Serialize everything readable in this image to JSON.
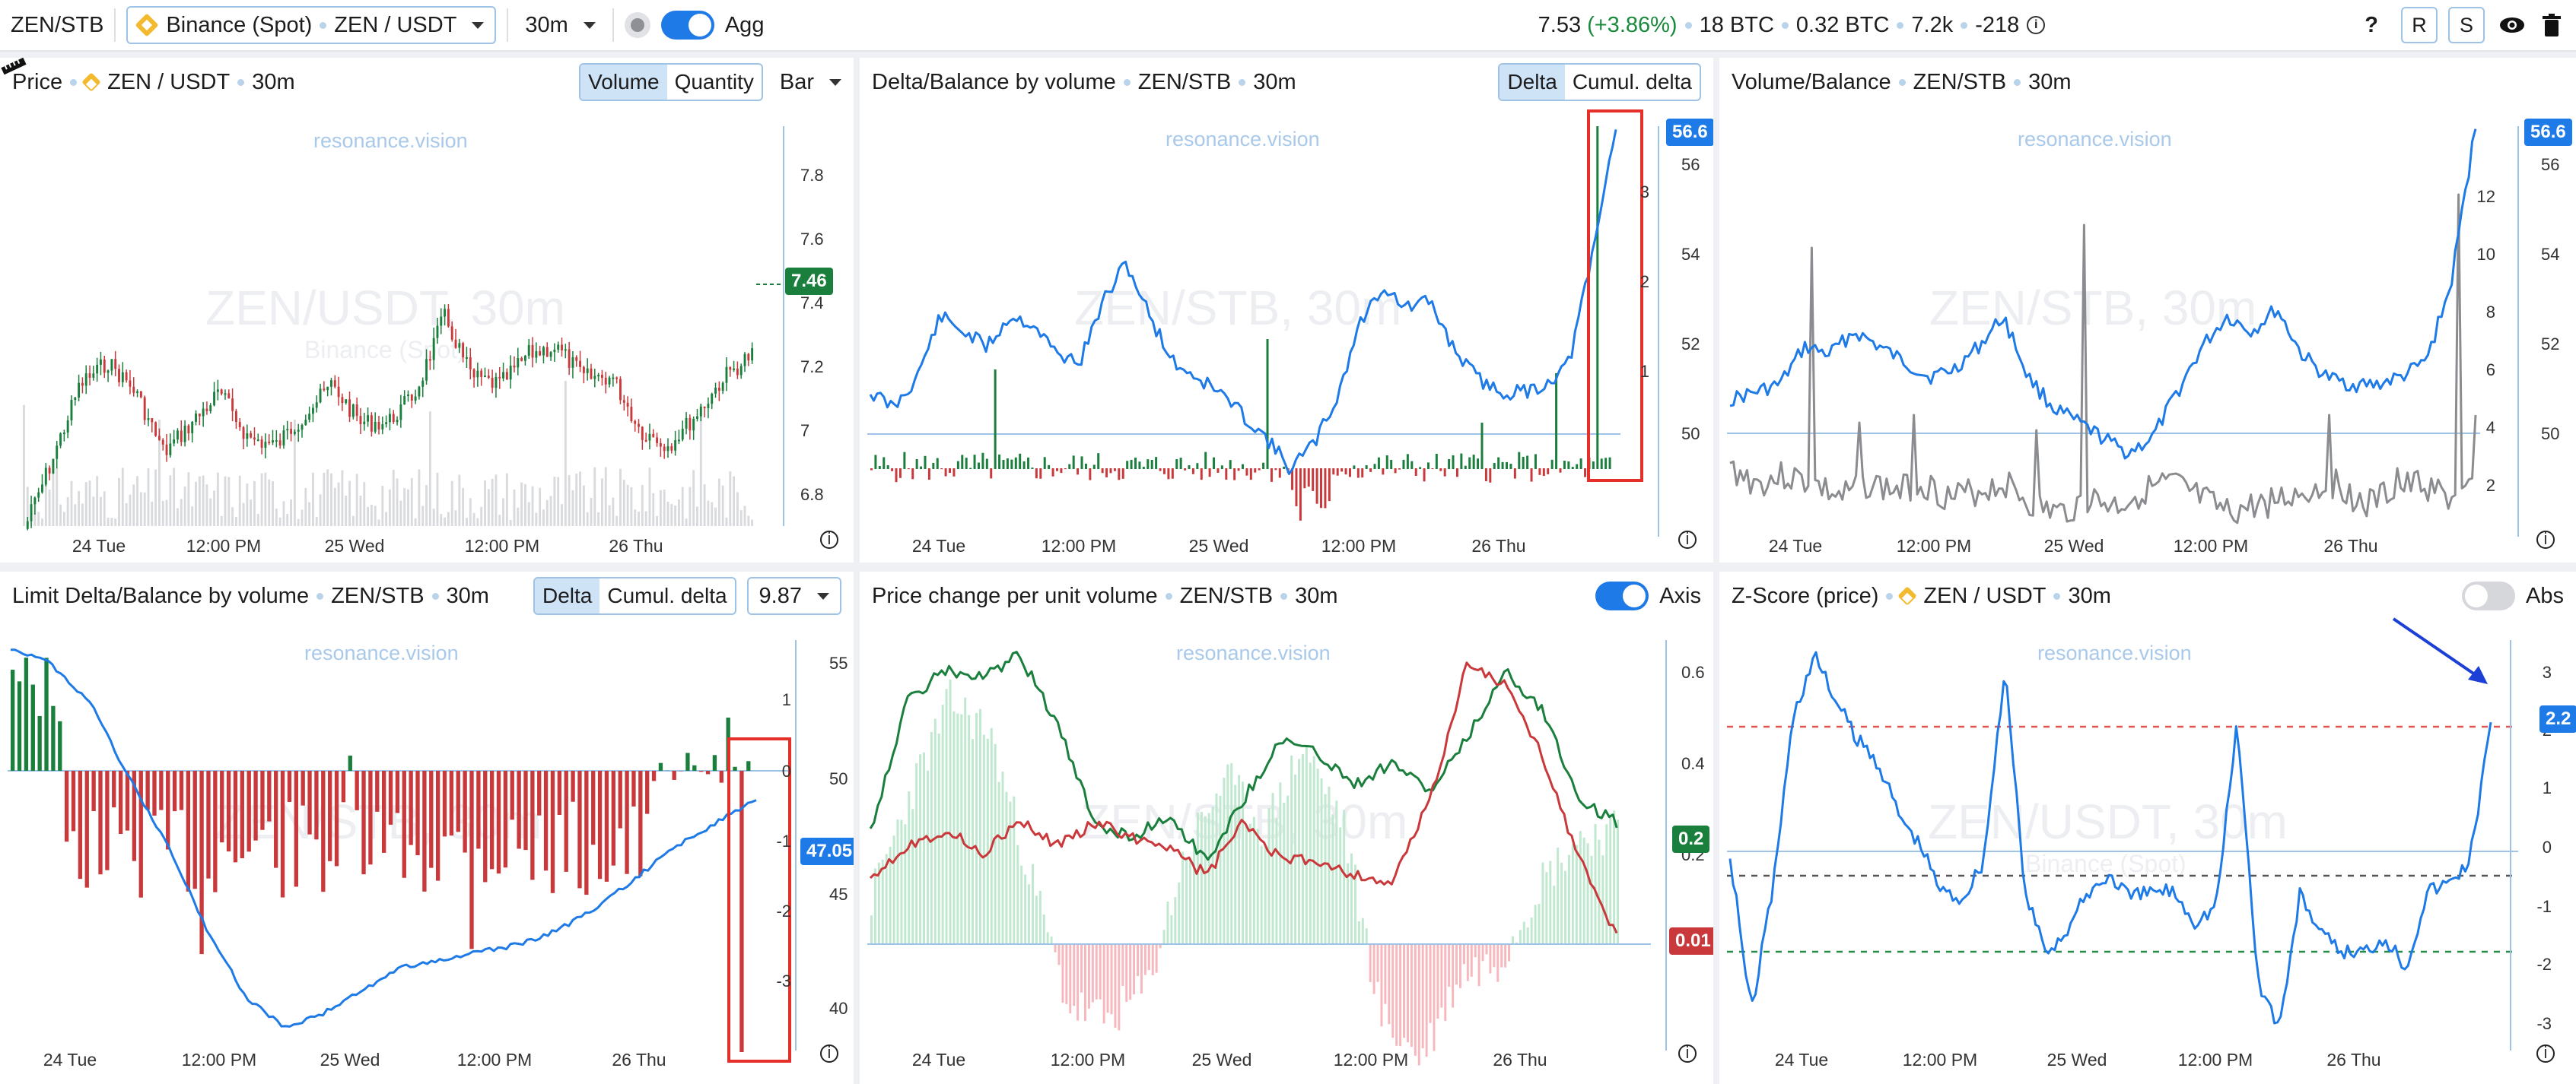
{
  "topbar": {
    "symbol": "ZEN/STB",
    "exchange": "Binance (Spot)",
    "pair": "ZEN / USDT",
    "interval": "30m",
    "agg_label": "Agg",
    "price": "7.53",
    "change": "(+3.86%)",
    "vol1": "18 BTC",
    "vol2": "0.32 BTC",
    "count": "7.2k",
    "delta": "-218",
    "help": "?",
    "r_label": "R",
    "s_label": "S"
  },
  "colors": {
    "accent": "#1e7ae6",
    "green": "#1a7f3c",
    "red": "#c9393b",
    "highlight": "#e5302a"
  },
  "watermark_site": "resonance.vision",
  "x_labels": [
    "24 Tue",
    "12:00 PM",
    "25 Wed",
    "12:00 PM",
    "26 Thu"
  ],
  "panels": {
    "price": {
      "title": "Price",
      "pair": "ZEN / USDT",
      "interval": "30m",
      "seg": [
        "Volume",
        "Quantity"
      ],
      "type": "Bar",
      "wm": "ZEN/USDT, 30m",
      "wm2": "Binance (Spot)",
      "y_ticks": [
        "7.8",
        "7.6",
        "7.4",
        "7.2",
        "7",
        "6.8"
      ],
      "badge": "7.46"
    },
    "delta": {
      "title": "Delta/Balance by volume",
      "pair": "ZEN/STB",
      "interval": "30m",
      "seg": [
        "Delta",
        "Cumul. delta"
      ],
      "wm": "ZEN/STB, 30m",
      "y_ticks": [
        "56",
        "54",
        "52",
        "50"
      ],
      "y_ticks_left": [
        "3",
        "2",
        "1"
      ],
      "badge": "56.6"
    },
    "volume": {
      "title": "Volume/Balance",
      "pair": "ZEN/STB",
      "interval": "30m",
      "wm": "ZEN/STB, 30m",
      "y_ticks_left": [
        "12",
        "10",
        "8",
        "6",
        "4",
        "2"
      ],
      "y_ticks": [
        "56",
        "54",
        "52",
        "50"
      ],
      "badge": "56.6"
    },
    "limit": {
      "title": "Limit Delta/Balance by volume",
      "pair": "ZEN/STB",
      "interval": "30m",
      "seg": [
        "Delta",
        "Cumul. delta"
      ],
      "select": "9.87",
      "wm": "ZEN/STB, 30m",
      "y_ticks_left": [
        "1",
        "0",
        "-1",
        "-2",
        "-3"
      ],
      "y_ticks": [
        "55",
        "50",
        "45",
        "40"
      ],
      "badge": "47.05"
    },
    "pcv": {
      "title": "Price change per unit volume",
      "pair": "ZEN/STB",
      "interval": "30m",
      "axis_label": "Axis",
      "wm": "ZEN/STB, 30m",
      "y_ticks": [
        "0.6",
        "0.4",
        "0.2"
      ],
      "badge_green": "0.2",
      "badge_red": "0.01"
    },
    "zscore": {
      "title": "Z-Score (price)",
      "pair": "ZEN / USDT",
      "interval": "30m",
      "abs_label": "Abs",
      "wm": "ZEN/USDT, 30m",
      "wm2": "Binance (Spot)",
      "y_ticks": [
        "3",
        "2",
        "1",
        "0",
        "-1",
        "-2",
        "-3"
      ],
      "badge": "2.2"
    }
  }
}
